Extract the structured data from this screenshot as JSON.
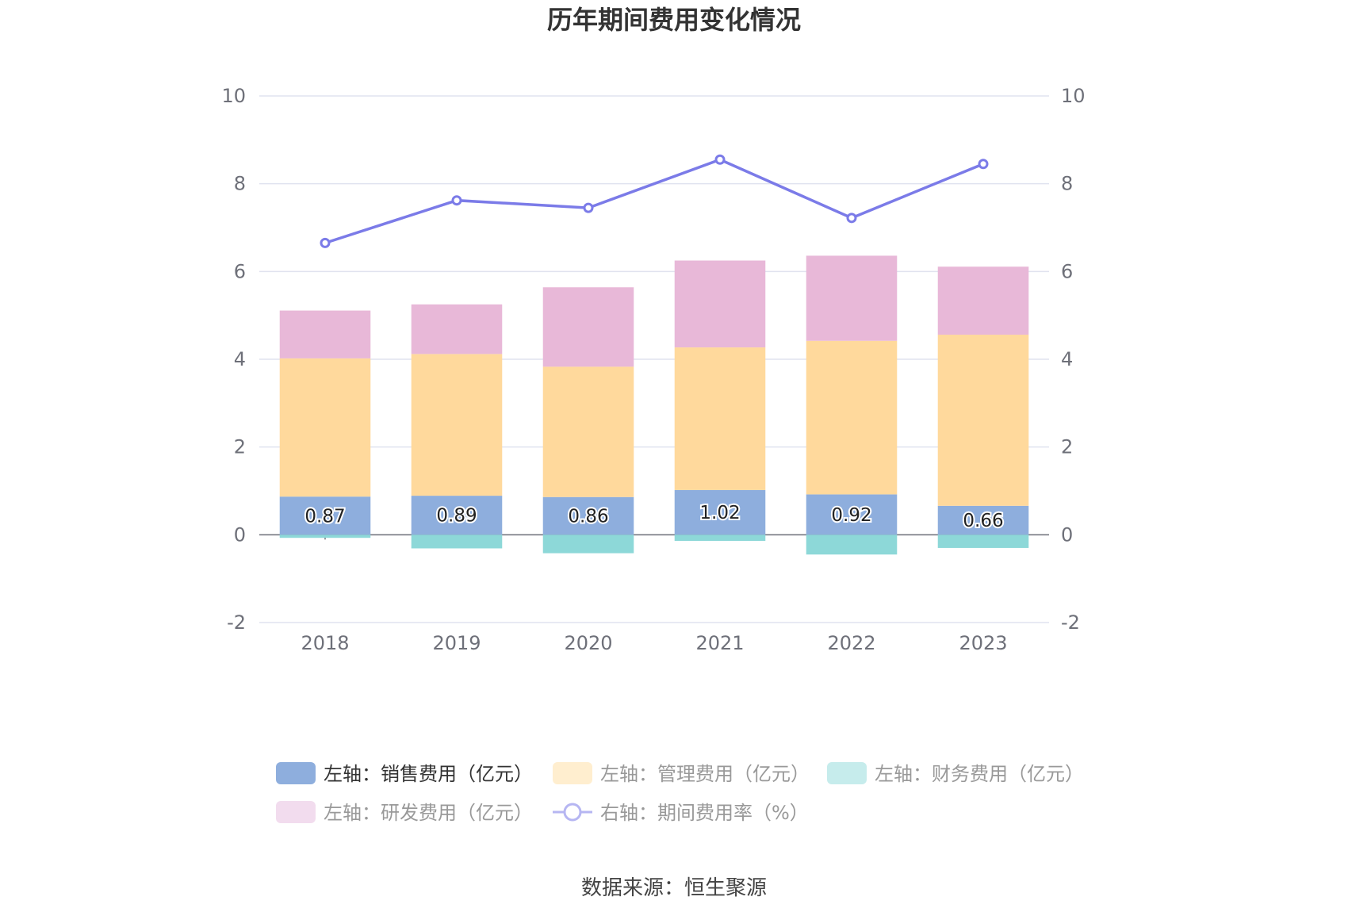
{
  "chart_data": {
    "type": "bar",
    "stacked": true,
    "title": "历年期间费用变化情况",
    "categories": [
      "2018",
      "2019",
      "2020",
      "2021",
      "2022",
      "2023"
    ],
    "left_axis": {
      "min": -2,
      "max": 10,
      "ticks": [
        "-2",
        "0",
        "2",
        "4",
        "6",
        "8",
        "10"
      ]
    },
    "right_axis": {
      "min": -2,
      "max": 10,
      "ticks": [
        "-2",
        "0",
        "2",
        "4",
        "6",
        "8",
        "10"
      ]
    },
    "series": [
      {
        "name": "左轴：销售费用（亿元）",
        "kind": "bar",
        "axis": "left",
        "color": "#8eaedd",
        "values": [
          0.87,
          0.89,
          0.86,
          1.02,
          0.92,
          0.66
        ],
        "labels": [
          "0.87",
          "0.89",
          "0.86",
          "1.02",
          "0.92",
          "0.66"
        ]
      },
      {
        "name": "左轴：管理费用（亿元）",
        "kind": "bar",
        "axis": "left",
        "color": "#ffd99c",
        "values": [
          3.15,
          3.23,
          2.97,
          3.25,
          3.5,
          3.9
        ]
      },
      {
        "name": "左轴：财务费用（亿元）",
        "kind": "bar",
        "axis": "left",
        "color": "#8dd8d8",
        "values": [
          -0.07,
          -0.31,
          -0.42,
          -0.14,
          -0.45,
          -0.3
        ]
      },
      {
        "name": "左轴：研发费用（亿元）",
        "kind": "bar",
        "axis": "left",
        "color": "#e8b8d8",
        "values": [
          1.09,
          1.13,
          1.81,
          1.98,
          1.94,
          1.55
        ]
      },
      {
        "name": "右轴：期间费用率（%）",
        "kind": "line",
        "axis": "right",
        "color": "#7b7be8",
        "values": [
          6.65,
          7.62,
          7.45,
          8.55,
          7.22,
          8.45
        ]
      }
    ],
    "legend_position": "bottom",
    "source": "数据来源：恒生聚源"
  }
}
